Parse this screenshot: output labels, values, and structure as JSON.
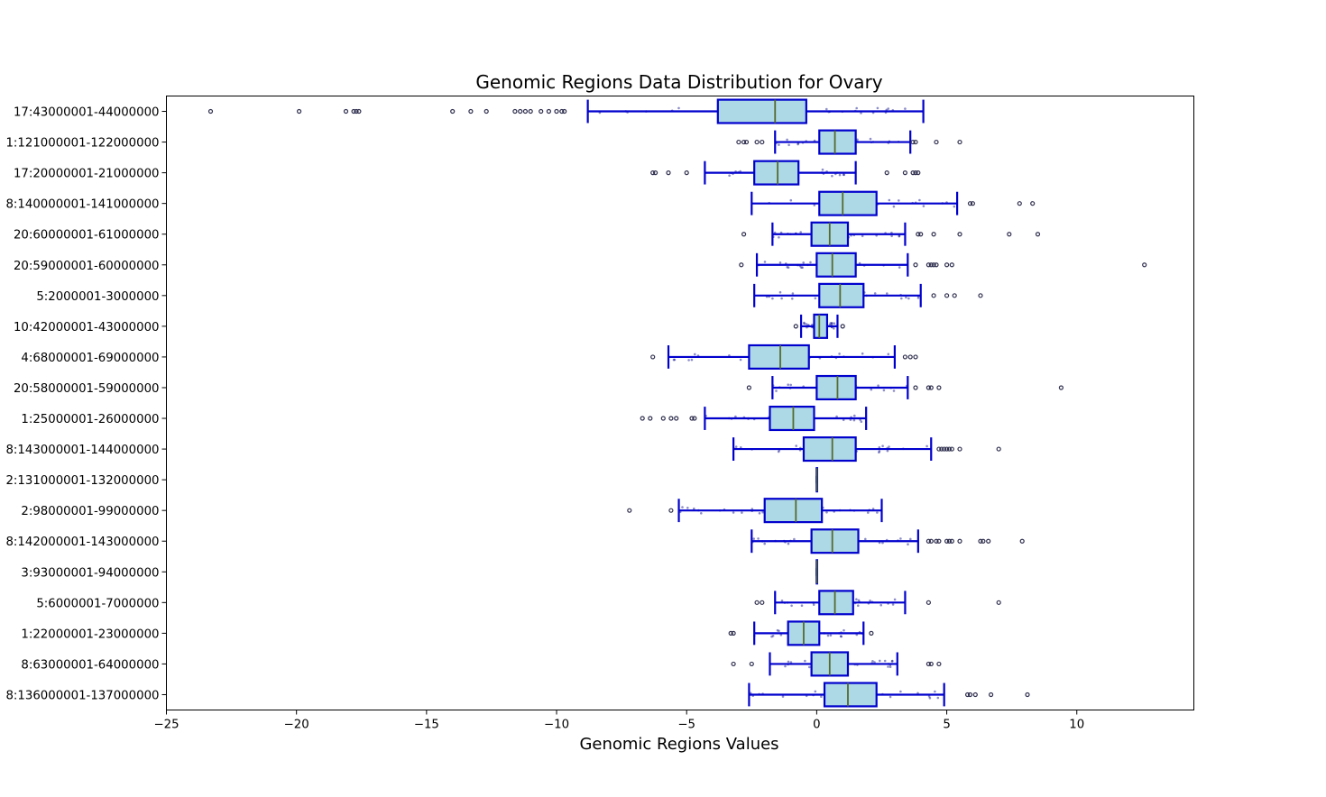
{
  "chart_data": {
    "type": "boxplot",
    "orientation": "horizontal",
    "title": "Genomic Regions Data Distribution for Ovary",
    "xlabel": "Genomic Regions Values",
    "ylabel": "",
    "xlim": [
      -25,
      14.5
    ],
    "xticks": [
      -25,
      -20,
      -15,
      -10,
      -5,
      0,
      5,
      10
    ],
    "xtick_labels": [
      "−25",
      "−20",
      "−15",
      "−10",
      "−5",
      "0",
      "5",
      "10"
    ],
    "grid": false,
    "legend": "none",
    "colors": {
      "box_fill": "#add8e6",
      "box_edge": "#0000cd",
      "median": "#556b2f",
      "points": "#00008b",
      "outlier_edge": "#2f2f4f"
    },
    "categories": [
      "17:43000001-44000000",
      "1:121000001-122000000",
      "17:20000001-21000000",
      "8:140000001-141000000",
      "20:60000001-61000000",
      "20:59000001-60000000",
      "5:2000001-3000000",
      "10:42000001-43000000",
      "4:68000001-69000000",
      "20:58000001-59000000",
      "1:25000001-26000000",
      "8:143000001-144000000",
      "2:131000001-132000000",
      "2:98000001-99000000",
      "8:142000001-143000000",
      "3:93000001-94000000",
      "5:6000001-7000000",
      "1:22000001-23000000",
      "8:63000001-64000000",
      "8:136000001-137000000"
    ],
    "boxes": [
      {
        "whislo": -8.8,
        "q1": -3.8,
        "med": -1.6,
        "q3": -0.4,
        "whishi": 4.1,
        "fliers": [
          -23.3,
          -19.9,
          -18.1,
          -17.8,
          -17.7,
          -17.6,
          -14.0,
          -13.3,
          -12.7,
          -11.6,
          -11.4,
          -11.2,
          -11.0,
          -10.6,
          -10.3,
          -10.0,
          -9.8,
          -9.7
        ]
      },
      {
        "whislo": -1.6,
        "q1": 0.1,
        "med": 0.7,
        "q3": 1.5,
        "whishi": 3.6,
        "fliers": [
          -3.0,
          -2.8,
          -2.7,
          -2.3,
          -2.1,
          3.7,
          3.8,
          4.6,
          5.5
        ]
      },
      {
        "whislo": -4.3,
        "q1": -2.4,
        "med": -1.5,
        "q3": -0.7,
        "whishi": 1.5,
        "fliers": [
          -6.3,
          -6.2,
          -5.7,
          -5.0,
          2.7,
          3.4,
          3.7,
          3.8,
          3.9
        ]
      },
      {
        "whislo": -2.5,
        "q1": 0.1,
        "med": 1.0,
        "q3": 2.3,
        "whishi": 5.4,
        "fliers": [
          5.9,
          6.0,
          7.8,
          8.3
        ]
      },
      {
        "whislo": -1.7,
        "q1": -0.2,
        "med": 0.5,
        "q3": 1.2,
        "whishi": 3.4,
        "fliers": [
          -2.8,
          3.9,
          4.0,
          4.5,
          5.5,
          7.4,
          8.5
        ]
      },
      {
        "whislo": -2.3,
        "q1": 0.0,
        "med": 0.6,
        "q3": 1.5,
        "whishi": 3.5,
        "fliers": [
          -2.9,
          3.8,
          4.3,
          4.4,
          4.5,
          4.6,
          5.0,
          5.2,
          12.6
        ]
      },
      {
        "whislo": -2.4,
        "q1": 0.1,
        "med": 0.9,
        "q3": 1.8,
        "whishi": 4.0,
        "fliers": [
          4.5,
          5.0,
          5.3,
          6.3
        ]
      },
      {
        "whislo": -0.6,
        "q1": -0.1,
        "med": 0.1,
        "q3": 0.4,
        "whishi": 0.8,
        "fliers": [
          -0.8,
          1.0
        ]
      },
      {
        "whislo": -5.7,
        "q1": -2.6,
        "med": -1.4,
        "q3": -0.3,
        "whishi": 3.0,
        "fliers": [
          -6.3,
          3.4,
          3.6,
          3.8
        ]
      },
      {
        "whislo": -1.7,
        "q1": 0.0,
        "med": 0.8,
        "q3": 1.5,
        "whishi": 3.5,
        "fliers": [
          -2.6,
          3.8,
          4.3,
          4.4,
          4.7,
          9.4
        ]
      },
      {
        "whislo": -4.3,
        "q1": -1.8,
        "med": -0.9,
        "q3": -0.1,
        "whishi": 1.9,
        "fliers": [
          -6.7,
          -6.4,
          -5.9,
          -5.6,
          -5.4,
          -4.8,
          -4.7
        ]
      },
      {
        "whislo": -3.2,
        "q1": -0.5,
        "med": 0.6,
        "q3": 1.5,
        "whishi": 4.4,
        "fliers": [
          4.7,
          4.8,
          4.9,
          5.0,
          5.1,
          5.2,
          5.5,
          7.0
        ]
      },
      {
        "whislo": 0.0,
        "q1": 0.0,
        "med": 0.0,
        "q3": 0.0,
        "whishi": 0.0,
        "fliers": []
      },
      {
        "whislo": -5.3,
        "q1": -2.0,
        "med": -0.8,
        "q3": 0.2,
        "whishi": 2.5,
        "fliers": [
          -7.2,
          -5.6
        ]
      },
      {
        "whislo": -2.5,
        "q1": -0.2,
        "med": 0.6,
        "q3": 1.6,
        "whishi": 3.9,
        "fliers": [
          4.3,
          4.4,
          4.6,
          4.7,
          5.0,
          5.1,
          5.2,
          5.5,
          6.3,
          6.4,
          6.6,
          7.9
        ]
      },
      {
        "whislo": 0.0,
        "q1": 0.0,
        "med": 0.0,
        "q3": 0.0,
        "whishi": 0.0,
        "fliers": []
      },
      {
        "whislo": -1.6,
        "q1": 0.1,
        "med": 0.7,
        "q3": 1.4,
        "whishi": 3.4,
        "fliers": [
          -2.3,
          -2.1,
          4.3,
          7.0
        ]
      },
      {
        "whislo": -2.4,
        "q1": -1.1,
        "med": -0.5,
        "q3": 0.1,
        "whishi": 1.8,
        "fliers": [
          -3.3,
          -3.2,
          2.1
        ]
      },
      {
        "whislo": -1.8,
        "q1": -0.2,
        "med": 0.5,
        "q3": 1.2,
        "whishi": 3.1,
        "fliers": [
          -3.2,
          -2.5,
          4.3,
          4.4,
          4.7
        ]
      },
      {
        "whislo": -2.6,
        "q1": 0.3,
        "med": 1.2,
        "q3": 2.3,
        "whishi": 4.9,
        "fliers": [
          5.8,
          5.9,
          6.1,
          6.7,
          8.1
        ]
      }
    ]
  }
}
